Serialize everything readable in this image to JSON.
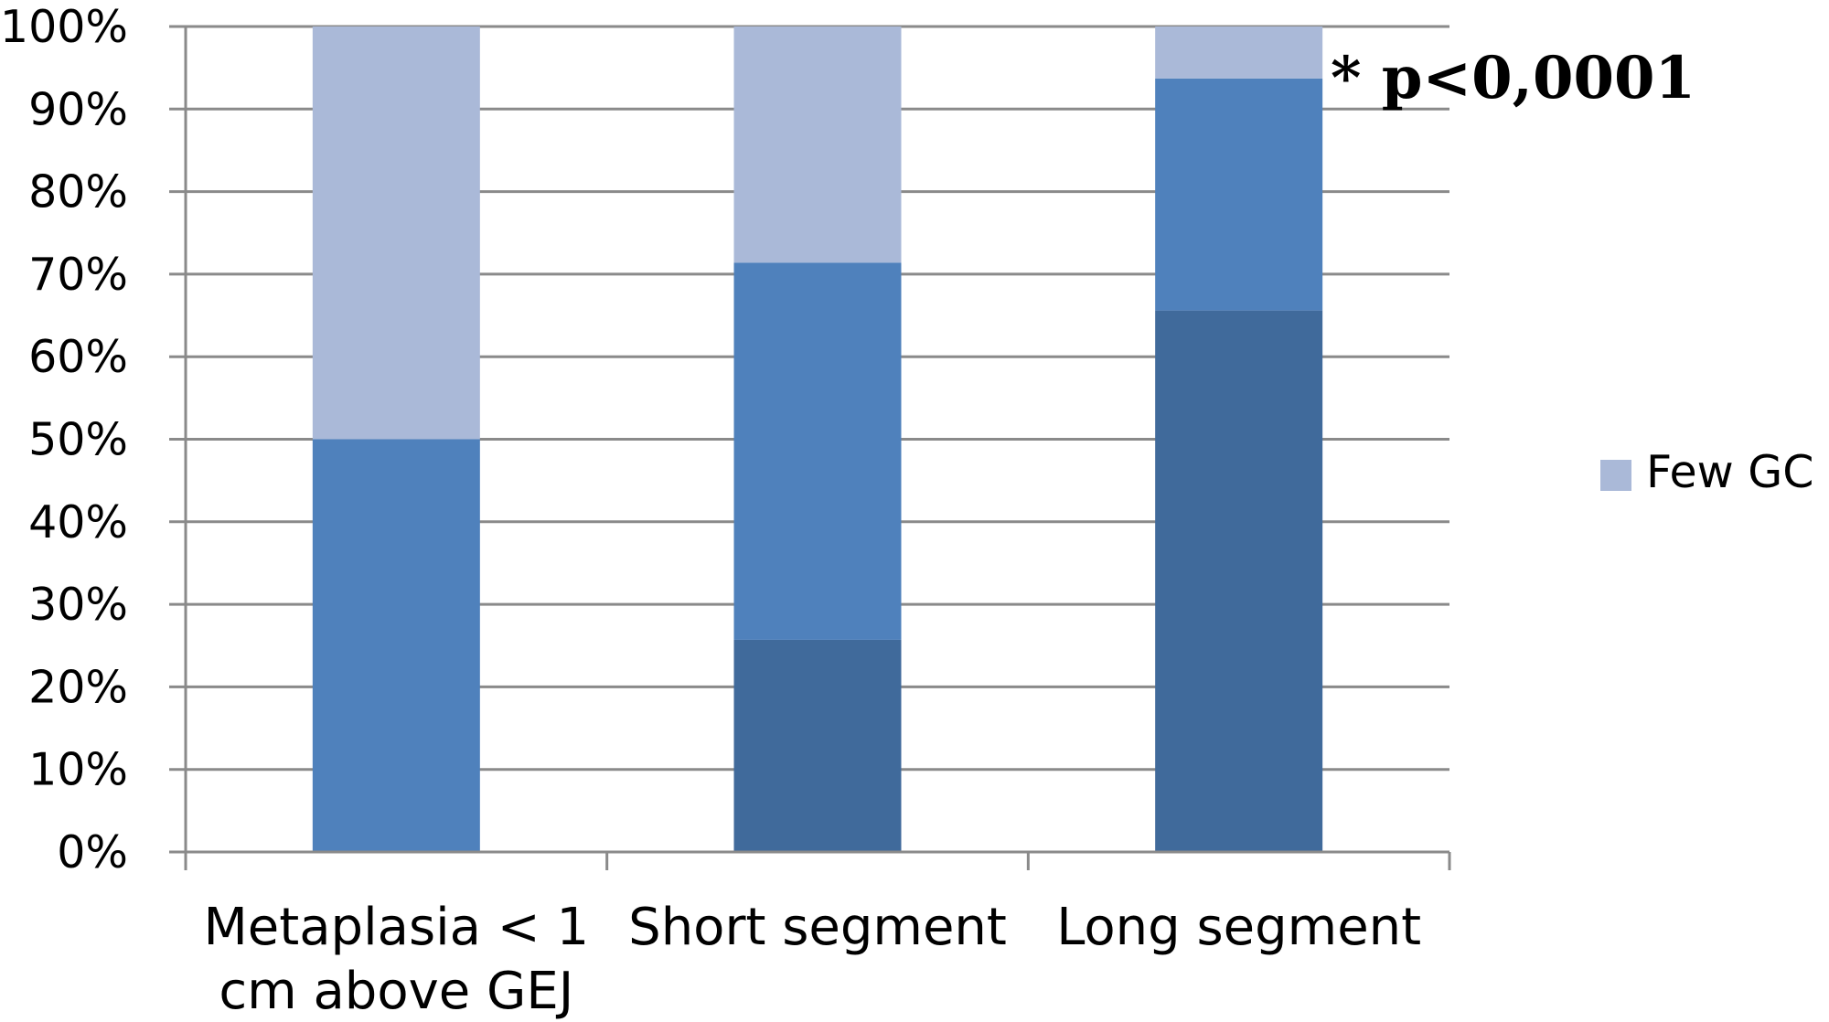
{
  "chart_data": {
    "type": "bar",
    "stacked": true,
    "percent_stacked": true,
    "categories": [
      [
        "Metaplasia < 1",
        "cm above GEJ"
      ],
      [
        "Short segment"
      ],
      [
        "Long segment"
      ]
    ],
    "series": [
      {
        "values": [
          0,
          25.7,
          65.6
        ],
        "color": "#406a9b"
      },
      {
        "values": [
          50,
          45.7,
          28.1
        ],
        "color": "#4f81bc"
      },
      {
        "name": "Few GC",
        "values": [
          50,
          28.6,
          6.3
        ],
        "color": "#aab9d8"
      }
    ],
    "ylim": [
      0,
      100
    ],
    "yticks": [
      "0%",
      "10%",
      "20%",
      "30%",
      "40%",
      "50%",
      "60%",
      "70%",
      "80%",
      "90%",
      "100%"
    ],
    "grid": true,
    "legend": {
      "entries": [
        "Few GC"
      ],
      "placement": "right"
    },
    "annotation": "* p<0,0001"
  }
}
